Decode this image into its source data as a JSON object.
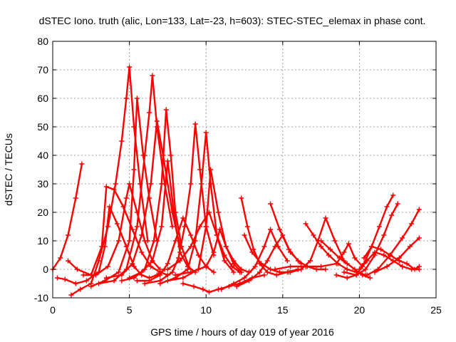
{
  "chart_data": {
    "type": "scatter",
    "title": "dSTEC Iono. truth (alic, Lon=133, Lat=-23, h=603): STEC-STEC_elemax in phase cont.",
    "xlabel": "GPS time / hours of day 019 of year 2016",
    "ylabel": "dSTEC  / TECUs",
    "xlim": [
      0,
      25
    ],
    "ylim": [
      -10,
      80
    ],
    "xticks": [
      "0",
      "5",
      "10",
      "15",
      "20",
      "25"
    ],
    "yticks": [
      "-10",
      "0",
      "10",
      "20",
      "30",
      "40",
      "50",
      "60",
      "70",
      "80"
    ],
    "grid": true,
    "marker": "plus",
    "color": "#ff0000",
    "series": [
      {
        "x": [
          0.0,
          0.5,
          1.0,
          1.5,
          1.9
        ],
        "y": [
          0,
          4,
          12,
          25,
          37
        ]
      },
      {
        "x": [
          0.3,
          0.8,
          1.5,
          2.2,
          3.0,
          3.4,
          3.7,
          4.2,
          4.8,
          5.3,
          5.8,
          6.3,
          6.8,
          7.3
        ],
        "y": [
          -3,
          -3.5,
          -5,
          -4,
          -1,
          8,
          22,
          16,
          8,
          1,
          -2,
          -3,
          -2,
          0
        ]
      },
      {
        "x": [
          1.2,
          1.8,
          2.5,
          3.0,
          3.6,
          4.1,
          4.5,
          4.8,
          5.0,
          5.3,
          5.7,
          6.2
        ],
        "y": [
          -9,
          -7,
          -5,
          3,
          15,
          30,
          45,
          60,
          71,
          50,
          30,
          10
        ]
      },
      {
        "x": [
          1.0,
          1.6,
          2.5,
          3.2,
          3.5,
          4.0,
          4.6,
          5.2,
          5.8,
          6.4,
          7.0,
          7.5
        ],
        "y": [
          3,
          0,
          -2,
          8,
          29,
          28,
          22,
          14,
          6,
          1,
          -1,
          -2
        ]
      },
      {
        "x": [
          2.0,
          2.8,
          3.6,
          4.3,
          4.8,
          5.0,
          5.5,
          6.0,
          6.5,
          7.0
        ],
        "y": [
          -2,
          -2,
          1,
          10,
          25,
          30,
          20,
          10,
          3,
          0
        ]
      },
      {
        "x": [
          2.5,
          3.4,
          4.3,
          5.0,
          5.3,
          5.5,
          5.9,
          6.3,
          6.8
        ],
        "y": [
          -6,
          -4,
          -1,
          10,
          35,
          60,
          40,
          25,
          10
        ]
      },
      {
        "x": [
          3.0,
          4.0,
          4.8,
          5.5,
          6.0,
          6.3,
          6.5,
          6.8,
          7.3,
          7.8
        ],
        "y": [
          -5,
          -4,
          0,
          15,
          40,
          55,
          68,
          50,
          30,
          15
        ]
      },
      {
        "x": [
          3.5,
          4.5,
          5.2,
          5.8,
          6.4,
          6.8,
          7.2,
          7.8,
          8.3
        ],
        "y": [
          -3,
          -2,
          2,
          12,
          30,
          52,
          40,
          20,
          8
        ]
      },
      {
        "x": [
          4.5,
          5.3,
          6.0,
          6.6,
          7.1,
          7.4,
          7.7,
          8.0,
          8.4,
          8.8
        ],
        "y": [
          -4,
          -3,
          0,
          10,
          30,
          56,
          40,
          20,
          8,
          2
        ]
      },
      {
        "x": [
          5.0,
          5.8,
          6.5,
          7.1,
          7.5,
          7.9,
          8.3,
          8.8,
          9.3
        ],
        "y": [
          -3,
          -1,
          3,
          15,
          38,
          20,
          6,
          1,
          -1
        ]
      },
      {
        "x": [
          5.5,
          6.3,
          7.0,
          7.5,
          8.0,
          8.5,
          9.0,
          9.5,
          10.0,
          10.5
        ],
        "y": [
          -4,
          -4,
          -2,
          2,
          10,
          18,
          12,
          5,
          1,
          -1
        ]
      },
      {
        "x": [
          6.0,
          7.0,
          7.8,
          8.2,
          8.6,
          9.0,
          9.3,
          9.6,
          10.0,
          10.5
        ],
        "y": [
          -5,
          -4,
          -1,
          4,
          15,
          30,
          51,
          35,
          15,
          5
        ]
      },
      {
        "x": [
          7.0,
          8.0,
          8.8,
          9.3,
          9.7,
          10.0,
          10.3,
          10.7,
          11.2,
          11.8
        ],
        "y": [
          -5,
          -3,
          0,
          10,
          30,
          48,
          30,
          12,
          3,
          -1
        ]
      },
      {
        "x": [
          7.5,
          8.5,
          9.5,
          10.0,
          10.3,
          10.8,
          11.3,
          11.8,
          12.3
        ],
        "y": [
          -4,
          -3,
          0,
          15,
          35,
          20,
          8,
          2,
          -1
        ]
      },
      {
        "x": [
          8.0,
          9.0,
          10.0,
          10.5,
          10.9,
          11.3,
          11.8,
          12.3,
          12.8
        ],
        "y": [
          -2,
          -1,
          1,
          6,
          14,
          8,
          3,
          0,
          -1
        ]
      },
      {
        "x": [
          8.5,
          9.2,
          9.8,
          10.2,
          10.8,
          11.5,
          12.2,
          13.0,
          13.8
        ],
        "y": [
          -5,
          -6,
          -7,
          -8,
          -7,
          -6,
          -5,
          -3,
          -2
        ]
      },
      {
        "x": [
          7.5,
          8.3,
          9.0,
          9.6,
          10.2,
          10.7,
          11.2,
          11.7,
          12.2
        ],
        "y": [
          0,
          3,
          8,
          15,
          20,
          12,
          5,
          1,
          -1
        ]
      },
      {
        "x": [
          12.3,
          12.7,
          13.1,
          13.5,
          14.0,
          14.6,
          15.3,
          16.0
        ],
        "y": [
          25,
          15,
          7,
          2,
          -1,
          -2,
          -1,
          0
        ]
      },
      {
        "x": [
          12.5,
          13.0,
          13.6,
          14.2,
          14.8,
          15.4,
          16.0
        ],
        "y": [
          12,
          6,
          2,
          0,
          -1,
          -1,
          0
        ]
      },
      {
        "x": [
          11.0,
          11.8,
          12.5,
          13.2,
          13.8,
          14.2,
          14.7,
          15.3
        ],
        "y": [
          -7,
          -5,
          -3,
          1,
          8,
          14,
          8,
          3
        ]
      },
      {
        "x": [
          12.0,
          12.8,
          13.5,
          14.0,
          14.5,
          15.0,
          15.5,
          16.2
        ],
        "y": [
          -6,
          -4,
          -1,
          3,
          8,
          12,
          6,
          2
        ]
      },
      {
        "x": [
          14.2,
          14.8,
          15.4,
          16.0,
          16.6,
          17.2,
          17.8
        ],
        "y": [
          23,
          14,
          7,
          3,
          1,
          0,
          0
        ]
      },
      {
        "x": [
          15.5,
          16.2,
          16.8,
          17.3,
          17.8,
          18.4,
          19.0
        ],
        "y": [
          -1,
          0,
          3,
          10,
          18,
          10,
          3
        ]
      },
      {
        "x": [
          16.5,
          17.0,
          17.5,
          18.0,
          18.6,
          19.2,
          19.8,
          20.4
        ],
        "y": [
          16,
          12,
          8,
          5,
          2,
          0,
          -1,
          -2
        ]
      },
      {
        "x": [
          17.5,
          18.1,
          18.7,
          19.2,
          19.7,
          20.2,
          20.7
        ],
        "y": [
          10,
          7,
          4,
          2,
          0,
          -2,
          -3
        ]
      },
      {
        "x": [
          14.5,
          15.5,
          16.5,
          17.5,
          18.5,
          19.0,
          19.3,
          19.7,
          20.2
        ],
        "y": [
          0,
          1,
          1,
          1,
          2,
          6,
          9,
          4,
          1
        ]
      },
      {
        "x": [
          18.5,
          19.2,
          19.8,
          20.3,
          20.8,
          21.3,
          21.8,
          22.2
        ],
        "y": [
          -2,
          -3,
          -2,
          2,
          8,
          15,
          22,
          26
        ]
      },
      {
        "x": [
          19.0,
          19.8,
          20.4,
          21.0,
          21.6,
          22.1,
          22.5
        ],
        "y": [
          -1,
          -2,
          0,
          5,
          12,
          19,
          23
        ]
      },
      {
        "x": [
          20.0,
          20.5,
          21.0,
          21.6,
          22.2,
          22.8,
          23.4,
          23.9
        ],
        "y": [
          0,
          3,
          6,
          5,
          3,
          1,
          0,
          0
        ]
      },
      {
        "x": [
          20.3,
          20.8,
          21.4,
          22.0,
          22.6,
          23.1,
          23.6,
          23.9
        ],
        "y": [
          4,
          8,
          7,
          5,
          3,
          2,
          0,
          1
        ]
      },
      {
        "x": [
          20.5,
          21.2,
          22.0,
          22.8,
          23.4,
          23.9
        ],
        "y": [
          -2,
          0,
          5,
          11,
          16,
          21
        ]
      },
      {
        "x": [
          21.0,
          21.8,
          22.6,
          23.3,
          23.9
        ],
        "y": [
          -1,
          1,
          4,
          8,
          11
        ]
      }
    ]
  }
}
